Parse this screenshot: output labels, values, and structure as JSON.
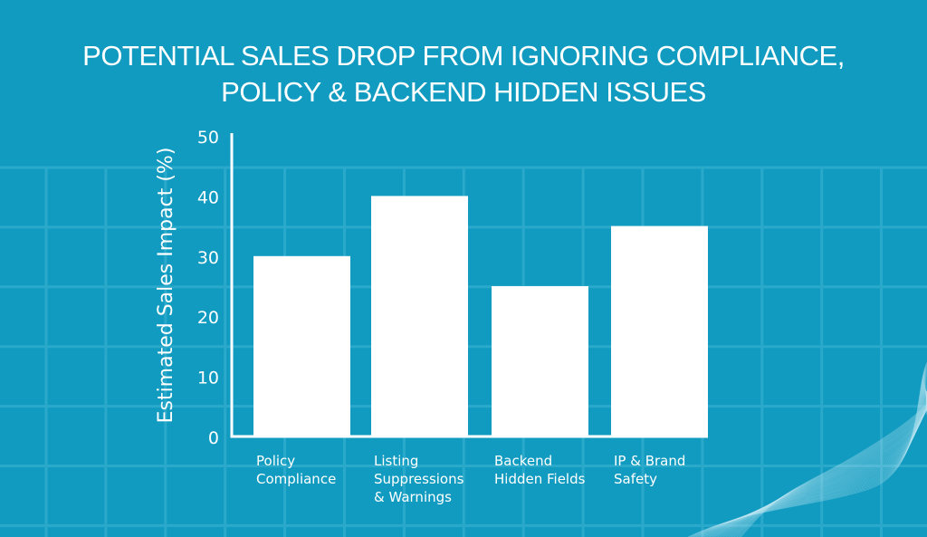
{
  "colors": {
    "background": "#119bc0",
    "grid": "#2ba9cb",
    "bar": "#ffffff",
    "axis": "#ffffff",
    "text": "#ffffff"
  },
  "chart_data": {
    "type": "bar",
    "title_lines": [
      "POTENTIAL SALES DROP FROM IGNORING COMPLIANCE,",
      "POLICY & BACKEND HIDDEN ISSUES"
    ],
    "title": "POTENTIAL SALES DROP FROM IGNORING COMPLIANCE, POLICY & BACKEND HIDDEN ISSUES",
    "xlabel": "",
    "ylabel": "Estimated Sales Impact (%)",
    "categories": [
      "Policy Compliance",
      "Listing Suppressions & Warnings",
      "Backend Hidden Fields",
      "IP & Brand Safety"
    ],
    "category_label_lines": [
      [
        "Policy",
        "Compliance"
      ],
      [
        "Listing",
        "Suppressions",
        "& Warnings"
      ],
      [
        "Backend",
        "Hidden Fields"
      ],
      [
        "IP & Brand",
        "Safety"
      ]
    ],
    "values": [
      30,
      40,
      25,
      35
    ],
    "ylim": [
      0,
      50
    ],
    "yticks": [
      0,
      10,
      20,
      30,
      40,
      50
    ],
    "ytick_labels": [
      "0",
      "10",
      "20",
      "30",
      "40",
      "50"
    ],
    "grid": false,
    "legend": "none"
  }
}
